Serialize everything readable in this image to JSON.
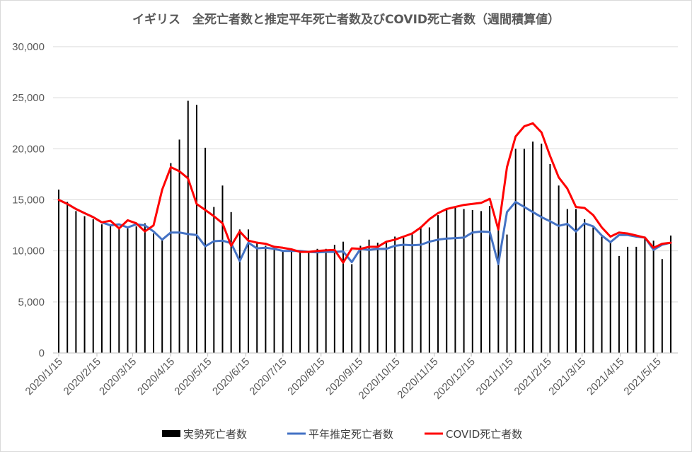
{
  "chart_data": {
    "type": "bar+line",
    "title": "イギリス　全死亡者数と推定平年死亡者数及びCOVID死亡者数（週間積算値）",
    "xlabel": "",
    "ylabel": "",
    "ylim": [
      0,
      30000
    ],
    "yticks": [
      "0",
      "5,000",
      "10,000",
      "15,000",
      "20,000",
      "25,000",
      "30,000"
    ],
    "ytick_values": [
      0,
      5000,
      10000,
      15000,
      20000,
      25000,
      30000
    ],
    "xtick_labels": [
      "2020/1/15",
      "2020/2/15",
      "2020/3/15",
      "2020/4/15",
      "2020/5/15",
      "2020/6/15",
      "2020/7/15",
      "2020/8/15",
      "2020/9/15",
      "2020/10/15",
      "2020/11/15",
      "2020/12/15",
      "2021/1/15",
      "2021/2/15",
      "2021/3/15",
      "2021/4/15",
      "2021/5/15"
    ],
    "xtick_week_index": [
      0,
      4.43,
      8.57,
      13,
      17.29,
      21.71,
      26,
      30.43,
      34.86,
      39.14,
      43.57,
      47.86,
      52.29,
      56.71,
      60.71,
      65.14,
      69.43
    ],
    "legend_position": "bottom",
    "grid": "horizontal",
    "series": [
      {
        "name": "実勢死亡者数",
        "kind": "bar",
        "color": "#000000",
        "values": [
          16000,
          14800,
          13900,
          13400,
          13100,
          12600,
          12400,
          12300,
          12200,
          12400,
          12700,
          11700,
          11100,
          18600,
          20900,
          24700,
          24300,
          20100,
          14300,
          16400,
          13800,
          12100,
          12100,
          10900,
          10500,
          10100,
          10000,
          10000,
          9900,
          10000,
          10200,
          10200,
          10600,
          10900,
          8700,
          10500,
          11100,
          10800,
          10800,
          11400,
          11300,
          11800,
          12200,
          12300,
          13500,
          14000,
          14300,
          14100,
          14000,
          13900,
          14400,
          12400,
          11600,
          20000,
          20000,
          20700,
          20500,
          18500,
          16400,
          14100,
          14100,
          13100,
          12300,
          11500,
          10800,
          9500,
          10400,
          10400,
          11400,
          11000,
          9200,
          11500
        ]
      },
      {
        "name": "平年推定死亡者数",
        "kind": "line",
        "color": "#4472C4",
        "values": [
          15000,
          14600,
          14100,
          13700,
          13300,
          12800,
          12500,
          12600,
          12300,
          12600,
          12500,
          11900,
          11100,
          11800,
          11800,
          11650,
          11550,
          10450,
          10950,
          11000,
          10750,
          9000,
          10800,
          10250,
          10300,
          10200,
          10000,
          10000,
          10000,
          9900,
          9850,
          9900,
          9900,
          9950,
          8900,
          10200,
          10100,
          10200,
          10200,
          10500,
          10600,
          10550,
          10600,
          10900,
          11100,
          11200,
          11250,
          11300,
          11800,
          11900,
          11850,
          8700,
          13800,
          14800,
          14300,
          13800,
          13300,
          12900,
          12450,
          12650,
          11900,
          12700,
          12400,
          11500,
          10850,
          11550,
          11550,
          11400,
          11300,
          10100,
          10600,
          10800
        ]
      },
      {
        "name": "COVID死亡者数",
        "kind": "line",
        "color": "#FF0000",
        "values": [
          15000,
          14600,
          14100,
          13700,
          13300,
          12800,
          12950,
          12200,
          13000,
          12700,
          11900,
          12500,
          16000,
          18200,
          17800,
          17100,
          14600,
          14000,
          13400,
          12700,
          10500,
          11900,
          11000,
          10800,
          10700,
          10400,
          10300,
          10150,
          9900,
          9900,
          10000,
          10050,
          10100,
          8850,
          10250,
          10200,
          10400,
          10400,
          10900,
          11100,
          11400,
          11700,
          12300,
          13100,
          13700,
          14100,
          14300,
          14500,
          14600,
          14700,
          15100,
          12100,
          18200,
          21200,
          22200,
          22500,
          21600,
          19300,
          17200,
          16100,
          14300,
          14200,
          13500,
          12300,
          11400,
          11800,
          11700,
          11500,
          11300,
          10300,
          10700,
          10800
        ]
      }
    ]
  }
}
